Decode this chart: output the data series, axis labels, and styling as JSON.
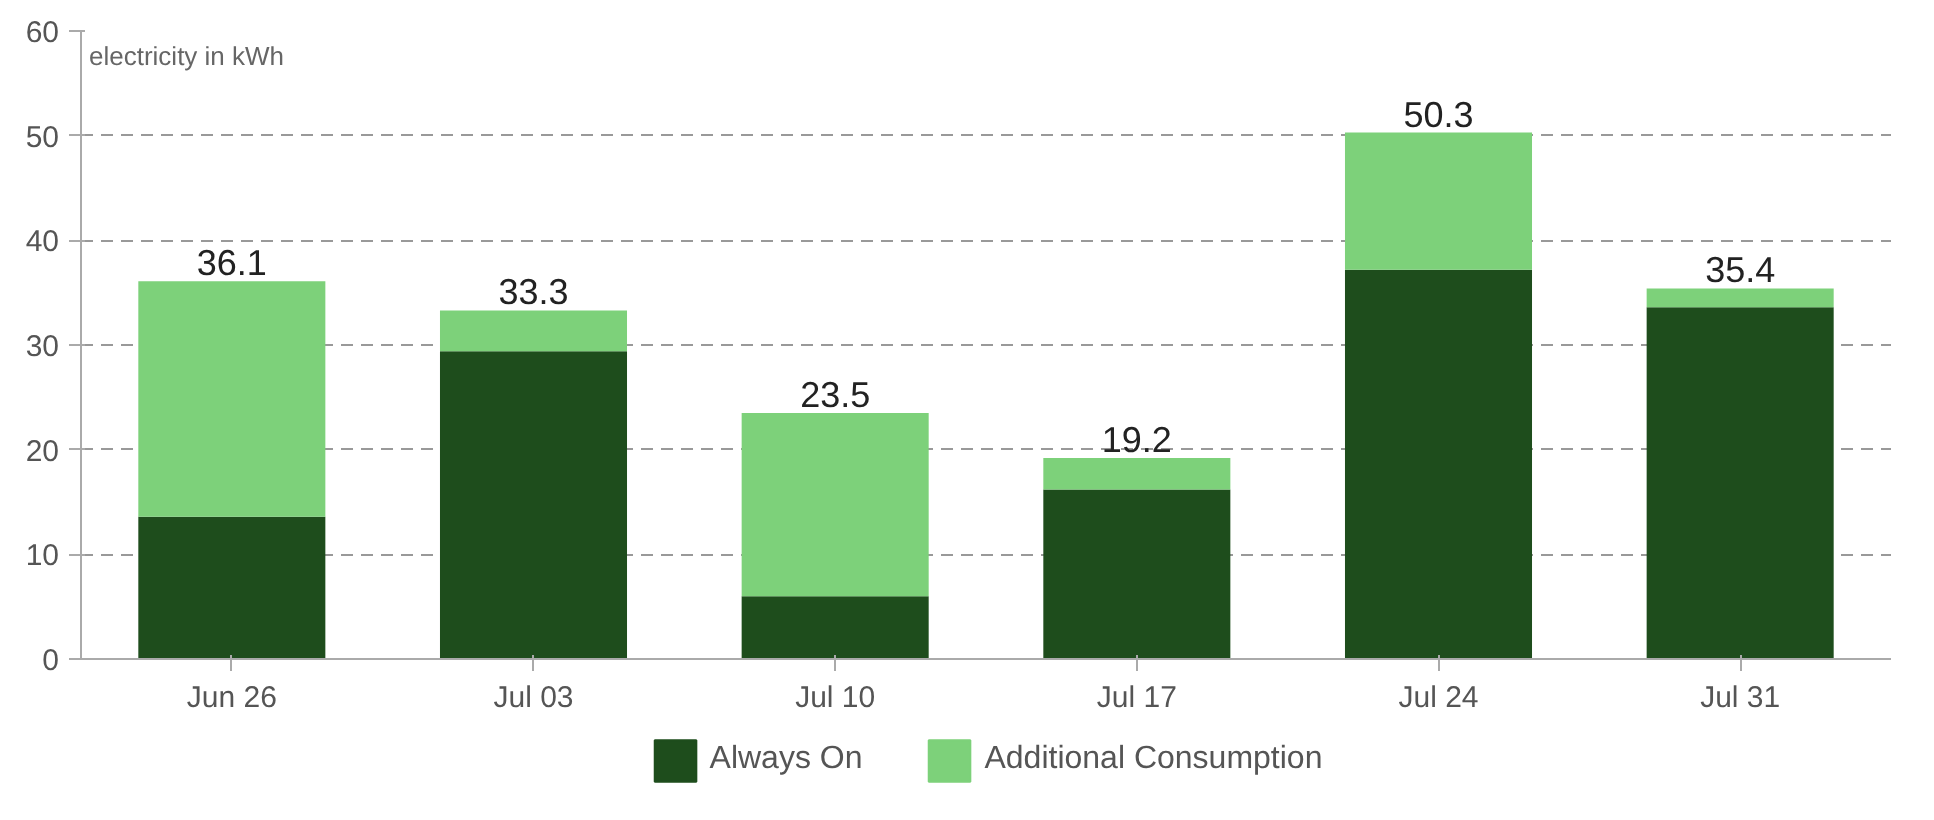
{
  "chart_data": {
    "type": "bar",
    "stacked": true,
    "ylabel": "electricity in kWh",
    "categories": [
      "Jun 26",
      "Jul 03",
      "Jul 10",
      "Jul 17",
      "Jul 24",
      "Jul 31"
    ],
    "series": [
      {
        "name": "Always On",
        "color": "#1e4d1c",
        "values": [
          13.6,
          29.4,
          6.0,
          16.2,
          37.2,
          33.6
        ]
      },
      {
        "name": "Additional Consumption",
        "color": "#7dd17a",
        "values": [
          22.5,
          3.9,
          17.5,
          3.0,
          13.1,
          1.8
        ]
      }
    ],
    "totals": [
      "36.1",
      "33.3",
      "23.5",
      "19.2",
      "50.3",
      "35.4"
    ],
    "ylim": [
      0,
      60
    ],
    "yticks": [
      0,
      10,
      20,
      30,
      40,
      50,
      60
    ],
    "grid": "y",
    "legend": "bottom"
  }
}
